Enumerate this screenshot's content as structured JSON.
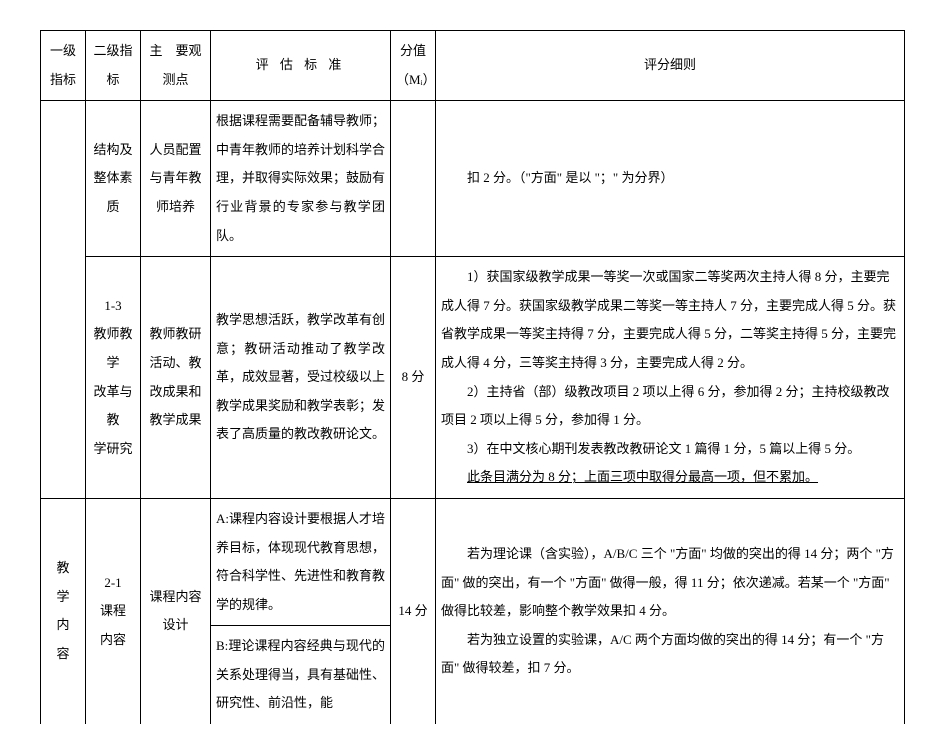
{
  "header": {
    "col1": "一级指标",
    "col2": "二级指标",
    "col3": "主　要观测点",
    "col4": "评 估 标 准",
    "col5_line1": "分值",
    "col5_line2": "（Mᵢ）",
    "col6": "评分细则"
  },
  "row1": {
    "col2": "结构及整体素质",
    "col3": "人员配置与青年教师培养",
    "col4": "根据课程需要配备辅导教师；中青年教师的培养计划科学合理，并取得实际效果；鼓励有行业背景的专家参与教学团队。",
    "col6": "扣 2 分。（\"方面\" 是以 \"；\" 为分界）"
  },
  "row2": {
    "col2_l1": "1-3",
    "col2_l2": "教师教学",
    "col2_l3": "改革与教",
    "col2_l4": "学研究",
    "col3": "教师教研活动、教改成果和教学成果",
    "col4": "教学思想活跃，教学改革有创意；教研活动推动了教学改革，成效显著，受过校级以上教学成果奖励和教学表彰；发表了高质量的教改教研论文。",
    "col5": "8 分",
    "col6_p1": "1）获国家级教学成果一等奖一次或国家二等奖两次主持人得 8 分，主要完成人得 7 分。获国家级教学成果二等奖一等主持人 7 分，主要完成人得 5 分。获省教学成果一等奖主持得 7 分，主要完成人得 5 分，二等奖主持得 5 分，主要完成人得 4 分，三等奖主持得 3 分，主要完成人得 2 分。",
    "col6_p2": "2）主持省（部）级教改项目  2 项以上得 6 分，参加得 2 分；主持校级教改项目 2 项以上得 5 分，参加得 1 分。",
    "col6_p3": "3）在中文核心期刊发表教改教研论文 1 篇得 1 分，5 篇以上得 5 分。",
    "col6_p4": "此条目满分为 8 分；上面三项中取得分最高一项，但不累加。"
  },
  "row3": {
    "col1_c1": "教",
    "col1_c2": "学",
    "col1_c3": "内",
    "col1_c4": "容",
    "col2_l1": "2-1",
    "col2_l2": "课程",
    "col2_l3": "内容",
    "col3": "课程内容设计",
    "col4a": "A:课程内容设计要根据人才培养目标，体现现代教育思想，符合科学性、先进性和教育教学的规律。",
    "col4b": "B:理论课程内容经典与现代的关系处理得当，具有基础性、研究性、前沿性，能",
    "col5": "14 分",
    "col6_p1": "若为理论课（含实验），A/B/C 三个 \"方面\" 均做的突出的得 14 分；两个 \"方面\" 做的突出，有一个 \"方面\" 做得一般，得 11 分；依次递减。若某一个 \"方面\" 做得比较差，影响整个教学效果扣 4 分。",
    "col6_p2": "若为独立设置的实验课，A/C 两个方面均做的突出的得 14 分；有一个 \"方面\" 做得较差，扣 7 分。"
  }
}
